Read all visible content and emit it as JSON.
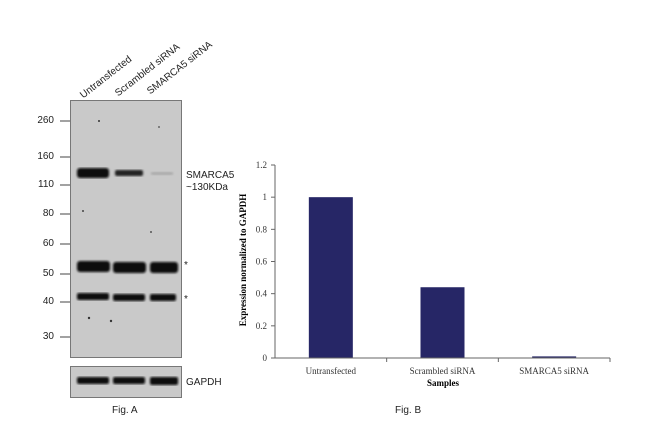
{
  "blot": {
    "lanes": [
      "Untransfected",
      "Scrambled siRNA",
      "SMARCA5 siRNA"
    ],
    "markers": [
      "260",
      "160",
      "110",
      "80",
      "60",
      "50",
      "40",
      "30"
    ],
    "target_label": "SMARCA5",
    "target_size": "~130KDa",
    "nonspecific_mark_1": "*",
    "nonspecific_mark_2": "*",
    "loading_control": "GAPDH",
    "fig_label": "Fig. A"
  },
  "chart_data": {
    "type": "bar",
    "categories": [
      "Untransfected",
      "Scrambled siRNA",
      "SMARCA5 siRNA"
    ],
    "values": [
      1.0,
      0.44,
      0.01
    ],
    "title": "",
    "xlabel": "Samples",
    "ylabel": "Expression normalized to GAPDH",
    "ylim": [
      0,
      1.2
    ],
    "yticks": [
      "0",
      "0.2",
      "0.4",
      "0.6",
      "0.8",
      "1",
      "1.2"
    ],
    "bar_color": "#262666",
    "grid": false,
    "fig_label": "Fig. B"
  }
}
